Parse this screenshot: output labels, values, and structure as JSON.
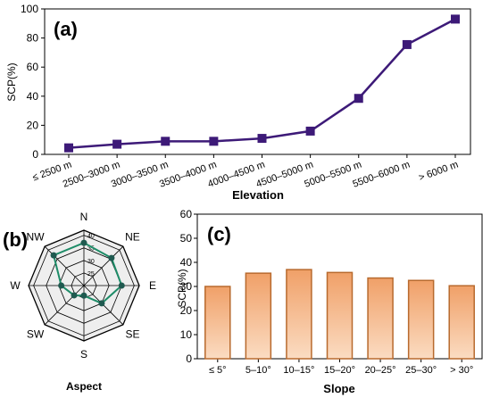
{
  "chart_data": [
    {
      "panel": "(a)",
      "type": "line",
      "xlabel": "Elevation",
      "ylabel": "SCP(%)",
      "ylim": [
        0,
        100
      ],
      "yticks": [
        0,
        20,
        40,
        60,
        80,
        100
      ],
      "categories": [
        "≤ 2500 m",
        "2500–3000 m",
        "3000–3500 m",
        "3500–4000 m",
        "4000–4500 m",
        "4500–5000 m",
        "5000–5500 m",
        "5500–6000 m",
        "> 6000 m"
      ],
      "values": [
        4.5,
        7,
        9,
        9,
        11,
        16,
        38.5,
        75.5,
        93
      ],
      "color": "#3d1a78",
      "marker": "square",
      "grid": false
    },
    {
      "panel": "(b)",
      "type": "radar",
      "xlabel": "Aspect",
      "categories": [
        "N",
        "NE",
        "E",
        "SE",
        "S",
        "SW",
        "W",
        "NW"
      ],
      "rticks": [
        25,
        30,
        35,
        40
      ],
      "rlim": [
        20,
        42
      ],
      "values": [
        37,
        35.5,
        35,
        30,
        24,
        25.5,
        29,
        37
      ],
      "color": "#1e8c68",
      "marker_color": "#1f5a50"
    },
    {
      "panel": "(c)",
      "type": "bar",
      "xlabel": "Slope",
      "ylabel": "SCP(%)",
      "ylim": [
        0,
        60
      ],
      "yticks": [
        0,
        10,
        20,
        30,
        40,
        50,
        60
      ],
      "categories": [
        "≤ 5°",
        "5–10°",
        "10–15°",
        "15–20°",
        "20–25°",
        "25–30°",
        "> 30°"
      ],
      "values": [
        30,
        35.5,
        37,
        35.8,
        33.5,
        32.5,
        30.3
      ],
      "bar_fill_top": "#f0a068",
      "bar_fill_bottom": "#fbdcc2",
      "bar_edge": "#b86a2e"
    }
  ]
}
